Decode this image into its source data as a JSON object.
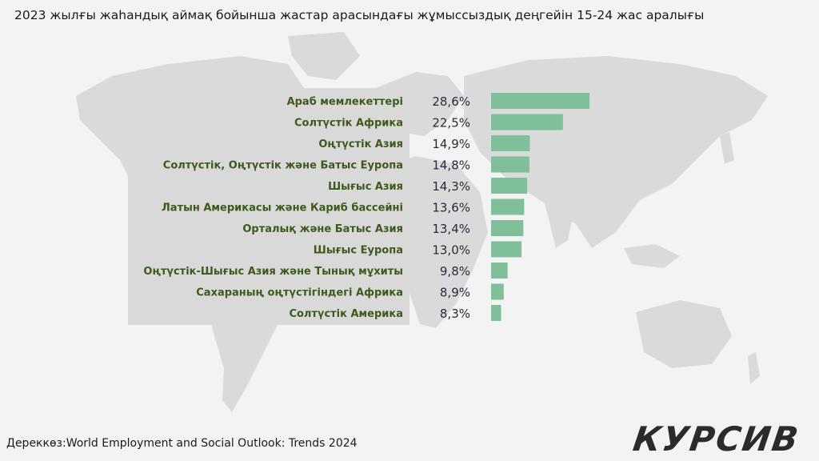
{
  "title": "2023 жылғы жаһандық аймақ бойынша жастар арасындағы жұмыссыздық деңгейін 15-24 жас аралығы",
  "source": "Дереккөз:World Employment and Social Outlook: Trends 2024",
  "logo": "КУРСИВ",
  "colors": {
    "bar": "#7fbf9a",
    "label": "#3d5a1c",
    "value": "#2a2a3a",
    "panel": "#d9d9d9",
    "map": "#dadada"
  },
  "chart_data": {
    "type": "bar",
    "orientation": "horizontal",
    "categories": [
      "Араб мемлекеттері",
      "Солтүстік Африка",
      "Оңтүстік Азия",
      "Солтүстік, Оңтүстік және Батыс Еуропа",
      "Шығыс Азия",
      "Латын Америкасы және Кариб бассейні",
      "Орталық және Батыс Азия",
      "Шығыс Еуропа",
      "Оңтүстік-Шығыс Азия және Тынық мұхиты",
      "Сахараның оңтүстігіндегі Африка",
      "Солтүстік Америка"
    ],
    "values": [
      28.6,
      22.5,
      14.9,
      14.8,
      14.3,
      13.6,
      13.4,
      13.0,
      9.8,
      8.9,
      8.3
    ],
    "value_labels": [
      "28,6%",
      "22,5%",
      "14,9%",
      "14,8%",
      "14,3%",
      "13,6%",
      "13,4%",
      "13,0%",
      "9,8%",
      "8,9%",
      "8,3%"
    ],
    "xlim": [
      6,
      28.6
    ]
  }
}
